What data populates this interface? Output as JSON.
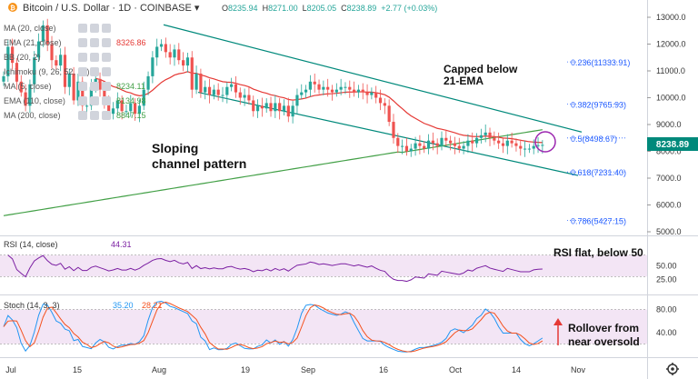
{
  "header": {
    "symbol": "Bitcoin / U.S. Dollar",
    "interval": "1D",
    "exchange": "COINBASE",
    "open": "O8235.94",
    "high": "H8271.00",
    "low": "L8205.05",
    "close": "C8238.89",
    "change": "+2.77 (+0.03%)"
  },
  "indicators": [
    {
      "label": "MA (20, close)",
      "value": ""
    },
    {
      "label": "EMA (21, close)",
      "value": "8326.86"
    },
    {
      "label": "BB (20, 2)",
      "value": ""
    },
    {
      "label": "Ichimoku (9, 26, 52, 26)",
      "value": ""
    },
    {
      "label": "MA (5, close)",
      "value": "8234.11"
    },
    {
      "label": "EMA (110, close)",
      "value": "8134.98"
    },
    {
      "label": "MA (200, close)",
      "value": "8847.15"
    }
  ],
  "annotations": {
    "capped": [
      "Capped below",
      "21-EMA"
    ],
    "channel": [
      "Sloping",
      "channel pattern"
    ],
    "rsi_note": "RSI flat, below 50",
    "stoch_note": [
      "Rollover from",
      "near oversold"
    ]
  },
  "price_badge": "8238.89",
  "colors": {
    "up": "#26a69a",
    "down": "#ef5350",
    "ema21": "#e53935",
    "ma200": "#43a047",
    "channel": "#00897b",
    "rsi": "#7b1fa2",
    "stoch_k": "#2196f3",
    "stoch_d": "#f4511e",
    "fib": "#2962ff",
    "badge": "#00897b"
  },
  "chart_data": {
    "type": "candlestick",
    "price_axis": {
      "ticks": [
        13000,
        12000,
        11000,
        10000,
        9000,
        8000,
        7000,
        6000,
        5000
      ],
      "range": [
        4900,
        13500
      ]
    },
    "x_labels": [
      "Jul",
      "15",
      "Aug",
      "19",
      "Sep",
      "16",
      "Oct",
      "14",
      "Nov"
    ],
    "fib_levels": [
      {
        "label": "0.236(11333.91)",
        "value": 11333.91
      },
      {
        "label": "0.382(9765.93)",
        "value": 9765.93
      },
      {
        "label": "0.5(8498.67)",
        "value": 8498.67
      },
      {
        "label": "0.618(7231.40)",
        "value": 7231.4
      },
      {
        "label": "0.786(5427.15)",
        "value": 5427.15
      }
    ],
    "daily_close": [
      10800,
      11900,
      11300,
      10600,
      10200,
      9700,
      10500,
      11500,
      12100,
      12700,
      12000,
      11400,
      11200,
      11600,
      10400,
      10900,
      9900,
      10600,
      9700,
      9700,
      10400,
      10700,
      10300,
      9900,
      9400,
      9600,
      9900,
      9500,
      9500,
      9800,
      9400,
      9700,
      10300,
      10800,
      11500,
      11900,
      12000,
      11700,
      11500,
      11800,
      11400,
      11200,
      11500,
      10300,
      10900,
      10200,
      10400,
      10100,
      10300,
      10100,
      10100,
      10400,
      10500,
      10200,
      10000,
      10100,
      9900,
      9500,
      9700,
      9600,
      9800,
      9500,
      9800,
      9500,
      9700,
      9300,
      9700,
      10100,
      10200,
      10300,
      10600,
      10500,
      10300,
      10400,
      10300,
      10200,
      10300,
      10400,
      10400,
      10300,
      10200,
      10300,
      10200,
      10100,
      10200,
      10000,
      9800,
      9700,
      9100,
      8500,
      8200,
      8200,
      8000,
      8100,
      8300,
      8200,
      8100,
      8400,
      8300,
      8200,
      8500,
      8400,
      8300,
      8200,
      8100,
      8200,
      8400,
      8300,
      8500,
      8600,
      8700,
      8500,
      8400,
      8300,
      8200,
      8400,
      8300,
      8200,
      8100,
      8100,
      8100,
      8200,
      8230,
      8240
    ],
    "channel_upper": [
      [
        0,
        12720
      ],
      [
        124,
        8720
      ]
    ],
    "channel_lower": [
      [
        36,
        10200
      ],
      [
        124,
        7100
      ]
    ],
    "rsi": {
      "label": "RSI (14, close)",
      "value": "44.31",
      "ticks": [
        50,
        25
      ],
      "bands": [
        30,
        70
      ]
    },
    "stoch": {
      "label": "Stoch (14, 3, 3)",
      "k": "35.20",
      "d": "28.21",
      "ticks": [
        80,
        40
      ],
      "bands": [
        20,
        80
      ]
    }
  }
}
